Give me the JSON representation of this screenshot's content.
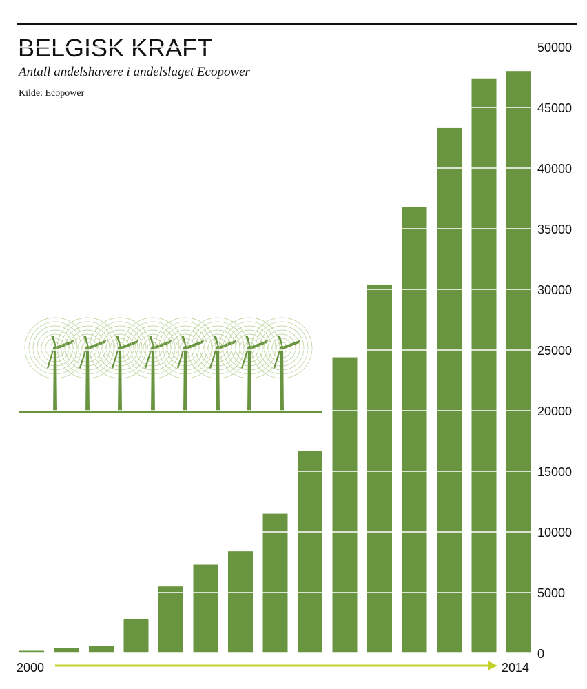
{
  "chart_data": {
    "type": "bar",
    "title": "BELGISK KRAFT",
    "subtitle": "Antall andelshavere i andelslaget Ecopower",
    "source": "Kilde: Ecopower",
    "categories": [
      "2000",
      null,
      null,
      null,
      null,
      null,
      null,
      null,
      null,
      null,
      null,
      null,
      null,
      null,
      "2014"
    ],
    "values": [
      200,
      400,
      600,
      2800,
      5500,
      7300,
      8400,
      11500,
      16700,
      24400,
      30400,
      36800,
      43300,
      47400,
      48000
    ],
    "color": "#6a9540",
    "ylim": [
      0,
      50000
    ],
    "yticks": [
      0,
      5000,
      10000,
      15000,
      20000,
      25000,
      30000,
      35000,
      40000,
      45000,
      50000
    ],
    "grid": true
  }
}
